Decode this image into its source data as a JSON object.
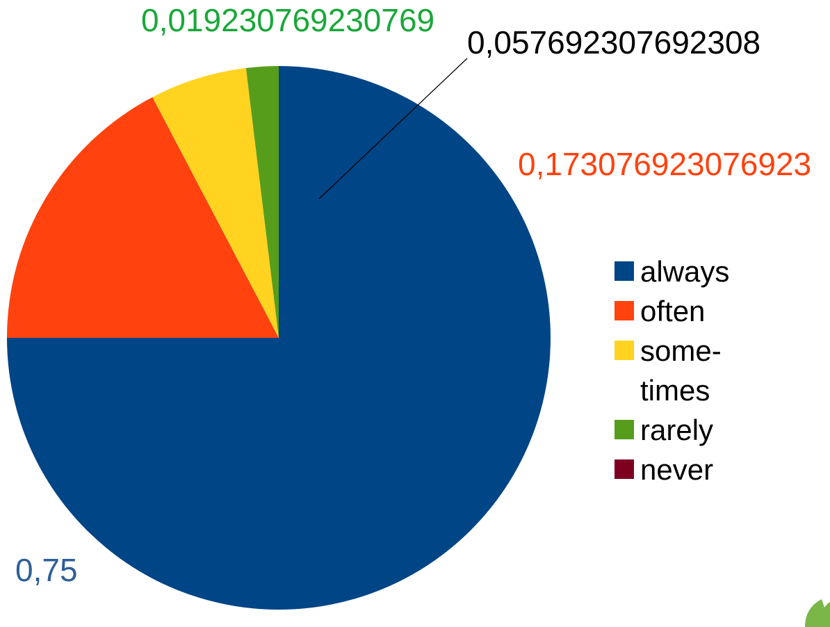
{
  "chart_data": {
    "type": "pie",
    "title": "",
    "start_angle_deg": 0,
    "direction": "clockwise",
    "legend_position": "right",
    "slices": [
      {
        "label": "always",
        "legend_lines": [
          "always"
        ],
        "value": 0.75,
        "value_label": "0,75",
        "color": "#004586",
        "label_color": "#2e5f9a"
      },
      {
        "label": "often",
        "legend_lines": [
          "often"
        ],
        "value": 0.173076923076923,
        "value_label": "0,173076923076923",
        "color": "#ff420e",
        "label_color": "#ff420e"
      },
      {
        "label": "sometimes",
        "legend_lines": [
          "some-",
          "times"
        ],
        "value": 0.057692307692308,
        "value_label": "0,057692307692308",
        "color": "#ffd320",
        "label_color": "#000000"
      },
      {
        "label": "rarely",
        "legend_lines": [
          "rarely"
        ],
        "value": 0.019230769230769,
        "value_label": "0,019230769230769",
        "color": "#579d1c",
        "label_color": "#1aa73a"
      },
      {
        "label": "never",
        "legend_lines": [
          "never"
        ],
        "value": 0,
        "value_label": "",
        "color": "#7e0021",
        "label_color": "#7e0021"
      }
    ]
  },
  "corner_icon": {
    "name": "leaf-icon",
    "color": "#7ab648"
  }
}
